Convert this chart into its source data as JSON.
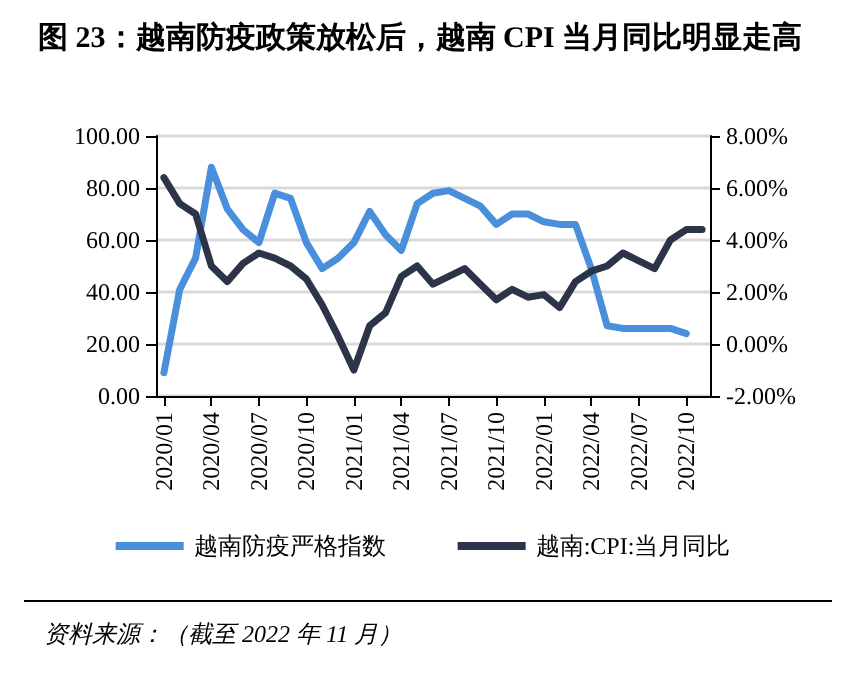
{
  "chart_data": {
    "type": "line",
    "title": "图 23：越南防疫政策放松后，越南 CPI 当月同比明显走高",
    "categories": [
      "2020/01",
      null,
      null,
      "2020/04",
      null,
      null,
      "2020/07",
      null,
      null,
      "2020/10",
      null,
      null,
      "2021/01",
      null,
      null,
      "2021/04",
      null,
      null,
      "2021/07",
      null,
      null,
      "2021/10",
      null,
      null,
      "2022/01",
      null,
      null,
      "2022/04",
      null,
      null,
      "2022/07",
      null,
      null,
      "2022/10",
      null
    ],
    "series": [
      {
        "name": "越南防疫严格指数",
        "color": "#4a8fdc",
        "values": [
          9,
          41,
          53,
          88,
          72,
          64,
          59,
          78,
          76,
          59,
          49,
          53,
          59,
          71,
          62,
          56,
          74,
          78,
          79,
          76,
          73,
          66,
          70,
          70,
          67,
          66,
          66,
          49,
          27,
          26,
          26,
          26,
          26,
          24,
          null
        ]
      },
      {
        "name": "越南:CPI:当月同比",
        "color": "#2b3547",
        "axis": "y2",
        "values": [
          6.4,
          5.4,
          5.0,
          3.0,
          2.4,
          3.1,
          3.5,
          3.3,
          3.0,
          2.5,
          1.5,
          0.3,
          -1.0,
          0.7,
          1.2,
          2.6,
          3.0,
          2.3,
          2.6,
          2.9,
          2.3,
          1.7,
          2.1,
          1.8,
          1.9,
          1.4,
          2.4,
          2.8,
          3.0,
          3.5,
          3.2,
          2.9,
          4.0,
          4.4,
          4.4
        ]
      }
    ],
    "ylim": [
      0,
      100
    ],
    "yticks": [
      {
        "value": 0,
        "label": "0.00"
      },
      {
        "value": 20,
        "label": "20.00"
      },
      {
        "value": 40,
        "label": "40.00"
      },
      {
        "value": 60,
        "label": "60.00"
      },
      {
        "value": 80,
        "label": "80.00"
      },
      {
        "value": 100,
        "label": "100.00"
      }
    ],
    "y2lim": [
      -2,
      8
    ],
    "y2ticks": [
      {
        "value": -2,
        "label": "-2.00%"
      },
      {
        "value": 0,
        "label": "0.00%"
      },
      {
        "value": 2,
        "label": "2.00%"
      },
      {
        "value": 4,
        "label": "4.00%"
      },
      {
        "value": 6,
        "label": "6.00%"
      },
      {
        "value": 8,
        "label": "8.00%"
      }
    ],
    "grid": "y",
    "legend": "bottom",
    "marker": "none",
    "line_style": "solid",
    "annotations": [
      "资料来源：（截至 2022 年 11 月）"
    ]
  }
}
